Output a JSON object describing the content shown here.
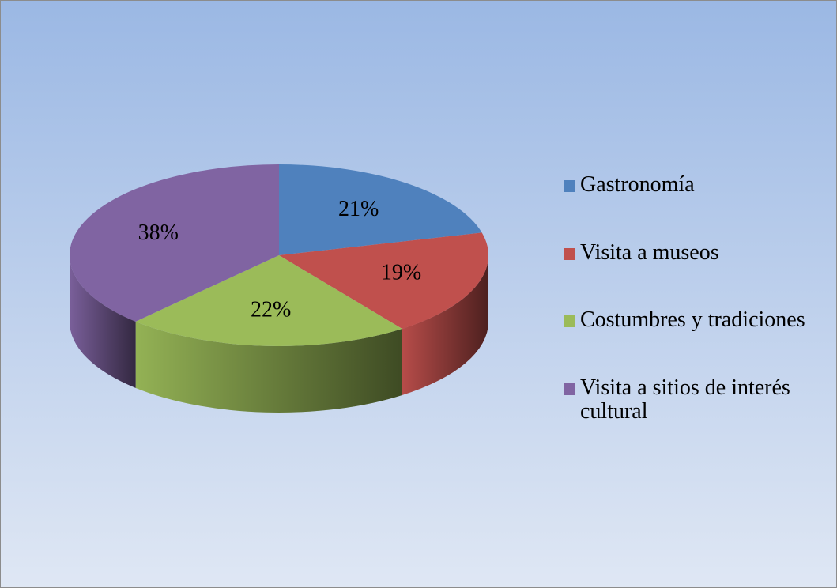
{
  "chart_data": {
    "type": "pie3d",
    "categories": [
      "Gastronomía",
      "Visita a museos",
      "Costumbres y tradiciones",
      "Visita a sitios de interés cultural"
    ],
    "values": [
      21,
      19,
      22,
      38
    ],
    "value_labels": [
      "21%",
      "19%",
      "22%",
      "38%"
    ],
    "colors": [
      "#4f81bd",
      "#c0504d",
      "#9bbb59",
      "#8064a2"
    ],
    "legend": "right"
  }
}
